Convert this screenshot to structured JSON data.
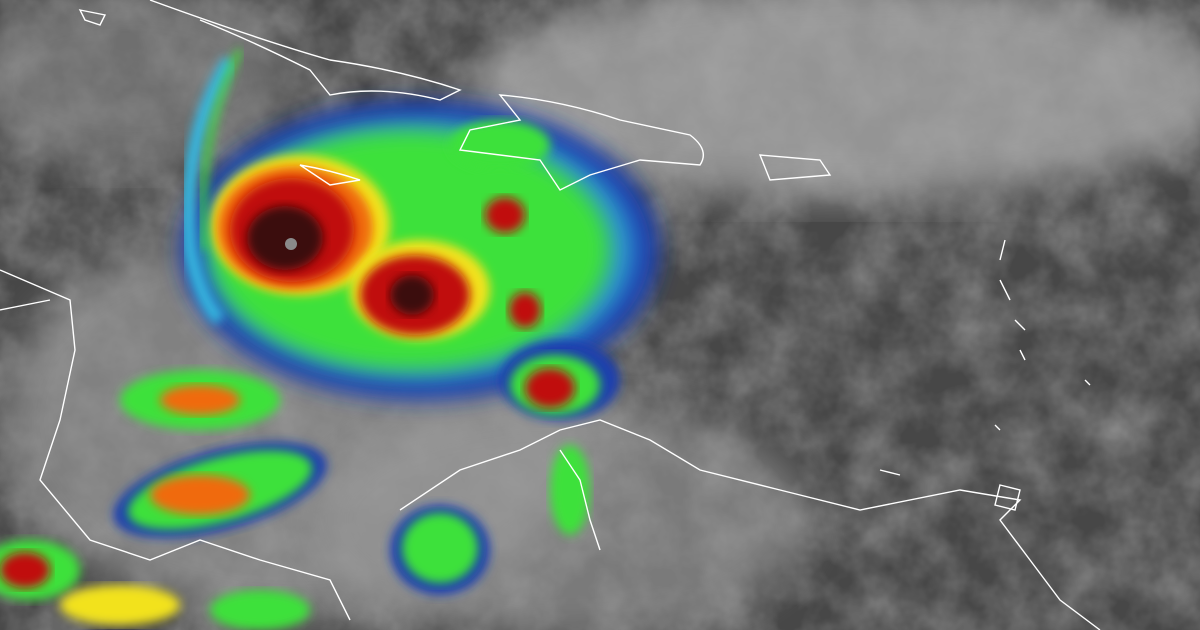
{
  "image": {
    "colors": {
      "ocean_dark": "#474747",
      "cloud_gray": "#9a9a9a",
      "cloud_light": "#c8c8c8",
      "ir_blue": "#1a3fae",
      "ir_cyan": "#35b7e0",
      "ir_green": "#3ee13a",
      "ir_yellow": "#f2e21a",
      "ir_orange": "#f06a10",
      "ir_red": "#c0100c",
      "ir_darkred": "#3a0a0a",
      "coastline": "#ffffff"
    }
  }
}
